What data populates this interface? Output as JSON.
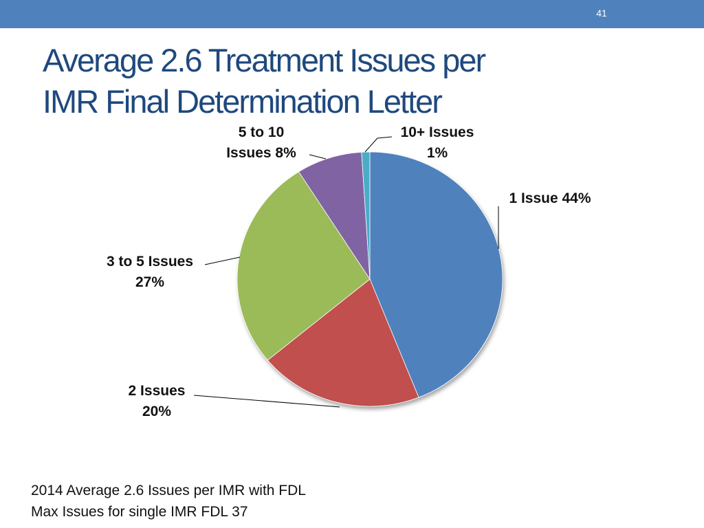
{
  "slide": {
    "number": "41",
    "title_line1": "Average 2.6 Treatment Issues per",
    "title_line2": "IMR Final Determination Letter",
    "footnote_line1": "2014 Average 2.6 Issues per IMR with FDL",
    "footnote_line2": "Max Issues for single IMR FDL 37"
  },
  "chart_data": {
    "type": "pie",
    "categories": [
      "1 Issue",
      "2 Issues",
      "3 to 5 Issues",
      "5 to 10 Issues",
      "10+ Issues"
    ],
    "values": [
      44,
      20,
      27,
      8,
      1
    ],
    "unit": "%",
    "labels": [
      [
        "1 Issue 44%"
      ],
      [
        "2 Issues",
        "20%"
      ],
      [
        "3 to 5 Issues",
        "27%"
      ],
      [
        "5 to 10",
        "Issues  8%"
      ],
      [
        "10+ Issues",
        "1%"
      ]
    ],
    "colors": [
      "#4f81bd",
      "#c0504d",
      "#9bbb59",
      "#8064a2",
      "#4bacc6"
    ],
    "start": "12 o'clock",
    "direction": "clockwise",
    "legend": "none"
  }
}
